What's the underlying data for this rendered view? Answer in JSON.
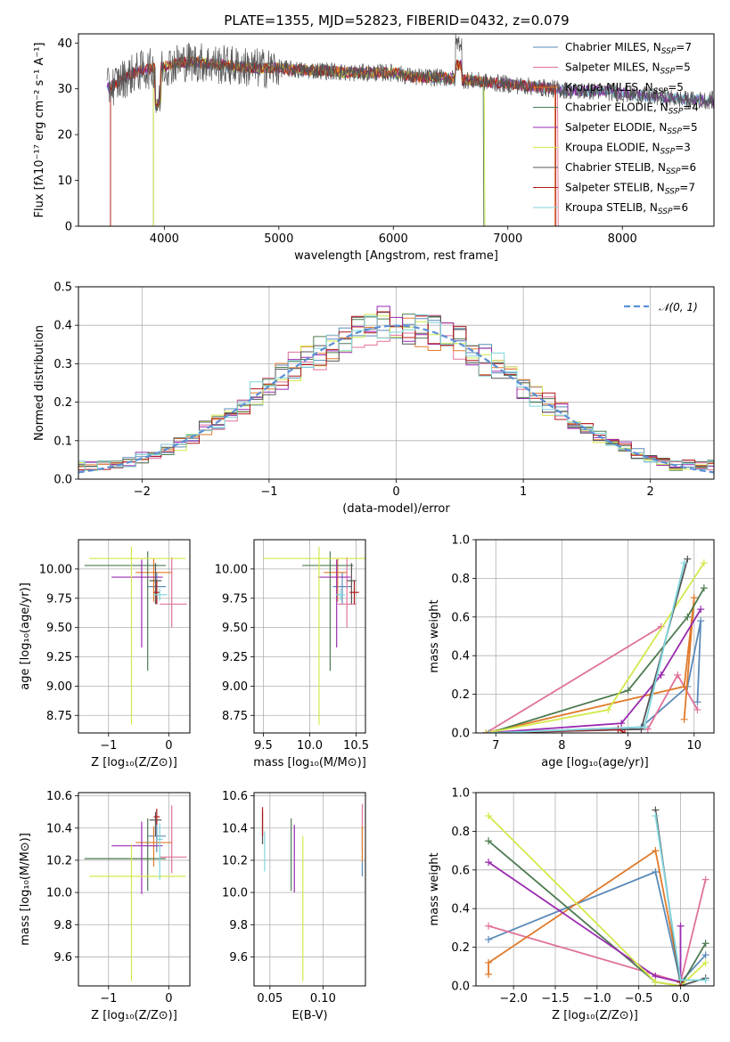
{
  "figure_title": "PLATE=1355, MJD=52823, FIBERID=0432, z=0.079",
  "colors": {
    "c1": "#5b8ab8",
    "c2": "#e0729a",
    "c3": "#e07a2a",
    "c4": "#4e7b50",
    "c5": "#9a2bb0",
    "c6": "#d4e84a",
    "c7": "#555555",
    "c8": "#b01818",
    "c9": "#7fd6dc"
  },
  "chart_data": [
    {
      "id": "spectrum",
      "type": "line",
      "xlabel": "wavelength [Angstrom, rest frame]",
      "ylabel": "Flux [fλ10⁻¹⁷ erg cm⁻² s⁻¹ A⁻¹]",
      "xlim": [
        3250,
        8800
      ],
      "ylim": [
        0,
        42
      ],
      "xticks": [
        4000,
        5000,
        6000,
        7000,
        8000
      ],
      "yticks": [
        0,
        10,
        20,
        30,
        40
      ],
      "grid": false,
      "legend_position": "top-right",
      "series": [
        {
          "name": "Chabrier MILES, N",
          "sub": "SSP",
          "suffix": "=7",
          "color": "c1"
        },
        {
          "name": "Salpeter MILES, N",
          "sub": "SSP",
          "suffix": "=5",
          "color": "c2"
        },
        {
          "name": "Kroupa MILES, N",
          "sub": "SSP",
          "suffix": "=5",
          "color": "c3"
        },
        {
          "name": "Chabrier ELODIE, N",
          "sub": "SSP",
          "suffix": "=4",
          "color": "c4"
        },
        {
          "name": "Salpeter ELODIE, N",
          "sub": "SSP",
          "suffix": "=5",
          "color": "c5"
        },
        {
          "name": "Kroupa ELODIE, N",
          "sub": "SSP",
          "suffix": "=3",
          "color": "c6"
        },
        {
          "name": "Chabrier STELIB, N",
          "sub": "SSP",
          "suffix": "=6",
          "color": "c7"
        },
        {
          "name": "Salpeter STELIB, N",
          "sub": "SSP",
          "suffix": "=7",
          "color": "c8"
        },
        {
          "name": "Kroupa STELIB, N",
          "sub": "SSP",
          "suffix": "=6",
          "color": "c9"
        }
      ],
      "continuum": {
        "x": [
          3500,
          3600,
          3700,
          3800,
          3900,
          4000,
          4100,
          4200,
          4400,
          4600,
          4800,
          5000,
          5200,
          5400,
          5600,
          5800,
          6000,
          6200,
          6400,
          6600,
          6800,
          7000,
          7200,
          7400,
          7600,
          7800,
          8000,
          8200,
          8400,
          8600,
          8800
        ],
        "y": [
          30,
          31.5,
          33,
          34,
          34.5,
          35,
          35.5,
          36,
          35.5,
          35,
          34.5,
          34.5,
          34,
          34,
          33.5,
          33.5,
          33.5,
          32.5,
          32.5,
          32,
          31.5,
          31,
          30.5,
          30,
          29.5,
          29.5,
          29,
          28.5,
          28,
          27.5,
          27.5
        ]
      },
      "ends": [
        {
          "color": "c3",
          "x0": 3530,
          "x1": 7410
        },
        {
          "color": "c2",
          "x0": 3530,
          "x1": 7440
        },
        {
          "color": "c6",
          "x0": 3905,
          "x1": 6800
        },
        {
          "color": "c4",
          "x0": 3905,
          "x1": 6790
        },
        {
          "color": "c8",
          "x0": 3530,
          "x1": 7420
        }
      ]
    },
    {
      "id": "residuals",
      "type": "histogram",
      "xlabel": "(data-model)/error",
      "ylabel": "Normed distribution",
      "xlim": [
        -2.5,
        2.5
      ],
      "ylim": [
        0,
        0.5
      ],
      "xticks": [
        -2,
        -1,
        0,
        1,
        2
      ],
      "yticks": [
        0.0,
        0.1,
        0.2,
        0.3,
        0.4,
        0.5
      ],
      "grid": true,
      "legend_position": "top-right",
      "reference": {
        "name": "𝒩(0, 1)",
        "color": "#5b8fd6"
      },
      "bin_width": 0.1
    },
    {
      "id": "age_vs_Z",
      "type": "errorbar",
      "xlabel": "Z [log₁₀(Z/Z⊙)]",
      "ylabel": "age  [log₁₀(age/yr)]",
      "xlim": [
        -1.5,
        0.35
      ],
      "ylim": [
        8.6,
        10.25
      ],
      "xticks": [
        -1,
        0
      ],
      "yticks": [
        8.75,
        9.0,
        9.25,
        9.5,
        9.75,
        10.0
      ],
      "grid": true,
      "points": [
        {
          "color": "c1",
          "x": -0.2,
          "y": 9.85,
          "xerr": [
            0.15,
            0.15
          ],
          "yerr": [
            0.15,
            0.12
          ]
        },
        {
          "color": "c2",
          "x": 0.05,
          "y": 9.7,
          "xerr": [
            0.2,
            0.25
          ],
          "yerr": [
            0.2,
            0.4
          ]
        },
        {
          "color": "c3",
          "x": -0.25,
          "y": 9.97,
          "xerr": [
            0.3,
            0.3
          ],
          "yerr": [
            0.25,
            0.12
          ]
        },
        {
          "color": "c4",
          "x": -0.35,
          "y": 10.03,
          "xerr": [
            1.05,
            0.3
          ],
          "yerr": [
            0.9,
            0.12
          ]
        },
        {
          "color": "c5",
          "x": -0.45,
          "y": 9.93,
          "xerr": [
            0.5,
            0.35
          ],
          "yerr": [
            0.6,
            0.15
          ]
        },
        {
          "color": "c6",
          "x": -0.62,
          "y": 10.09,
          "xerr": [
            0.7,
            0.9
          ],
          "yerr": [
            1.42,
            0.1
          ]
        },
        {
          "color": "c7",
          "x": -0.22,
          "y": 9.9,
          "xerr": [
            0.1,
            0.1
          ],
          "yerr": [
            0.2,
            0.15
          ]
        },
        {
          "color": "c8",
          "x": -0.2,
          "y": 9.8,
          "xerr": [
            0.05,
            0.05
          ],
          "yerr": [
            0.1,
            0.1
          ]
        },
        {
          "color": "c9",
          "x": -0.15,
          "y": 9.78,
          "xerr": [
            0.1,
            0.12
          ],
          "yerr": [
            0.05,
            0.05
          ]
        }
      ]
    },
    {
      "id": "age_vs_mass",
      "type": "errorbar",
      "xlabel": "mass [log₁₀(M/M⊙)]",
      "ylabel": "",
      "xlim": [
        9.4,
        10.6
      ],
      "ylim": [
        8.6,
        10.25
      ],
      "xticks": [
        9.5,
        10.0,
        10.5
      ],
      "yticks": [
        8.75,
        9.0,
        9.25,
        9.5,
        9.75,
        10.0
      ],
      "grid": true,
      "points": [
        {
          "color": "c1",
          "x": 10.35,
          "y": 9.85,
          "xerr": [
            0.1,
            0.1
          ],
          "yerr": [
            0.15,
            0.12
          ]
        },
        {
          "color": "c2",
          "x": 10.4,
          "y": 9.7,
          "xerr": [
            0.1,
            0.1
          ],
          "yerr": [
            0.2,
            0.4
          ]
        },
        {
          "color": "c3",
          "x": 10.3,
          "y": 9.97,
          "xerr": [
            0.15,
            0.1
          ],
          "yerr": [
            0.25,
            0.12
          ]
        },
        {
          "color": "c4",
          "x": 10.22,
          "y": 10.03,
          "xerr": [
            0.3,
            0.25
          ],
          "yerr": [
            0.9,
            0.12
          ]
        },
        {
          "color": "c5",
          "x": 10.29,
          "y": 9.93,
          "xerr": [
            0.2,
            0.15
          ],
          "yerr": [
            0.6,
            0.15
          ]
        },
        {
          "color": "c6",
          "x": 10.1,
          "y": 10.09,
          "xerr": [
            0.6,
            0.5
          ],
          "yerr": [
            1.42,
            0.1
          ]
        },
        {
          "color": "c7",
          "x": 10.45,
          "y": 9.9,
          "xerr": [
            0.05,
            0.05
          ],
          "yerr": [
            0.2,
            0.15
          ]
        },
        {
          "color": "c8",
          "x": 10.48,
          "y": 9.8,
          "xerr": [
            0.05,
            0.05
          ],
          "yerr": [
            0.1,
            0.1
          ]
        },
        {
          "color": "c9",
          "x": 10.33,
          "y": 9.78,
          "xerr": [
            0.05,
            0.05
          ],
          "yerr": [
            0.05,
            0.05
          ]
        }
      ]
    },
    {
      "id": "weight_vs_age",
      "type": "line",
      "xlabel": "age  [log₁₀(age/yr)]",
      "ylabel": "mass weight",
      "xlim": [
        6.7,
        10.3
      ],
      "ylim": [
        0,
        1.0
      ],
      "xticks": [
        7,
        8,
        9,
        10
      ],
      "yticks": [
        0.0,
        0.2,
        0.4,
        0.6,
        0.8,
        1.0
      ],
      "grid": true,
      "series": [
        {
          "color": "c1",
          "x": [
            6.85,
            9.2,
            9.9,
            10.1,
            10.05
          ],
          "y": [
            0.0,
            0.03,
            0.24,
            0.58,
            0.16
          ]
        },
        {
          "color": "c2",
          "x": [
            9.5,
            6.85,
            9.3,
            9.75,
            10.05
          ],
          "y": [
            0.55,
            0.0,
            0.02,
            0.3,
            0.12
          ]
        },
        {
          "color": "c3",
          "x": [
            6.85,
            9.85,
            10.0,
            9.85
          ],
          "y": [
            0.0,
            0.24,
            0.7,
            0.07
          ]
        },
        {
          "color": "c4",
          "x": [
            6.9,
            9.0,
            9.9,
            10.15
          ],
          "y": [
            0.0,
            0.22,
            0.6,
            0.75
          ]
        },
        {
          "color": "c5",
          "x": [
            6.85,
            8.9,
            9.5,
            10.1
          ],
          "y": [
            0.0,
            0.05,
            0.3,
            0.64
          ]
        },
        {
          "color": "c6",
          "x": [
            6.85,
            8.7,
            10.15
          ],
          "y": [
            0.0,
            0.12,
            0.88
          ]
        },
        {
          "color": "c7",
          "x": [
            6.9,
            9.2,
            9.9
          ],
          "y": [
            0.0,
            0.02,
            0.9
          ]
        },
        {
          "color": "c8",
          "x": [
            6.9,
            8.85,
            8.95
          ],
          "y": [
            0.0,
            0.02,
            0.0
          ]
        },
        {
          "color": "c9",
          "x": [
            6.9,
            9.25,
            9.85
          ],
          "y": [
            0.0,
            0.03,
            0.88
          ]
        }
      ]
    },
    {
      "id": "mass_vs_Z",
      "type": "errorbar",
      "xlabel": "Z [log₁₀(Z/Z⊙)]",
      "ylabel": "mass [log₁₀(M/M⊙)]",
      "xlim": [
        -1.5,
        0.35
      ],
      "ylim": [
        9.42,
        10.62
      ],
      "xticks": [
        -1,
        0
      ],
      "yticks": [
        9.6,
        9.8,
        10.0,
        10.2,
        10.4,
        10.6
      ],
      "grid": true,
      "points": [
        {
          "color": "c1",
          "x": -0.2,
          "y": 10.35,
          "xerr": [
            0.15,
            0.15
          ],
          "yerr": [
            0.1,
            0.1
          ]
        },
        {
          "color": "c2",
          "x": 0.05,
          "y": 10.22,
          "xerr": [
            0.2,
            0.25
          ],
          "yerr": [
            0.1,
            0.32
          ]
        },
        {
          "color": "c3",
          "x": -0.25,
          "y": 10.31,
          "xerr": [
            0.3,
            0.3
          ],
          "yerr": [
            0.15,
            0.1
          ]
        },
        {
          "color": "c4",
          "x": -0.35,
          "y": 10.21,
          "xerr": [
            1.05,
            0.3
          ],
          "yerr": [
            0.2,
            0.25
          ]
        },
        {
          "color": "c5",
          "x": -0.45,
          "y": 10.29,
          "xerr": [
            0.5,
            0.35
          ],
          "yerr": [
            0.3,
            0.15
          ]
        },
        {
          "color": "c6",
          "x": -0.62,
          "y": 10.1,
          "xerr": [
            0.7,
            0.9
          ],
          "yerr": [
            0.65,
            0.2
          ]
        },
        {
          "color": "c7",
          "x": -0.22,
          "y": 10.45,
          "xerr": [
            0.1,
            0.1
          ],
          "yerr": [
            0.1,
            0.05
          ]
        },
        {
          "color": "c8",
          "x": -0.2,
          "y": 10.47,
          "xerr": [
            0.05,
            0.05
          ],
          "yerr": [
            0.05,
            0.05
          ]
        },
        {
          "color": "c9",
          "x": -0.15,
          "y": 10.33,
          "xerr": [
            0.05,
            0.05
          ],
          "yerr": [
            0.25,
            0.1
          ]
        }
      ]
    },
    {
      "id": "mass_vs_ebv",
      "type": "errorbar",
      "xlabel": "E(B-V)",
      "ylabel": "",
      "xlim": [
        0.035,
        0.14
      ],
      "ylim": [
        9.42,
        10.62
      ],
      "xticks": [
        0.05,
        0.1
      ],
      "xticklabels": [
        "0.05",
        "0.10"
      ],
      "yticks": [
        9.6,
        9.8,
        10.0,
        10.2,
        10.4,
        10.6
      ],
      "grid": true,
      "points": [
        {
          "color": "c1",
          "x": 0.137,
          "y": 10.15,
          "xerr": [
            0,
            0
          ],
          "yerr": [
            0.05,
            0.05
          ]
        },
        {
          "color": "c2",
          "x": 0.137,
          "y": 10.35,
          "xerr": [
            0,
            0
          ],
          "yerr": [
            0.1,
            0.2
          ]
        },
        {
          "color": "c3",
          "x": 0.137,
          "y": 10.31,
          "xerr": [
            0,
            0
          ],
          "yerr": [
            0.12,
            0.1
          ]
        },
        {
          "color": "c4",
          "x": 0.07,
          "y": 10.21,
          "xerr": [
            0,
            0
          ],
          "yerr": [
            0.2,
            0.25
          ]
        },
        {
          "color": "c5",
          "x": 0.073,
          "y": 10.22,
          "xerr": [
            0,
            0
          ],
          "yerr": [
            0.22,
            0.2
          ]
        },
        {
          "color": "c6",
          "x": 0.081,
          "y": 9.9,
          "xerr": [
            0,
            0
          ],
          "yerr": [
            0.45,
            0.45
          ]
        },
        {
          "color": "c7",
          "x": 0.043,
          "y": 10.4,
          "xerr": [
            0,
            0
          ],
          "yerr": [
            0.1,
            0.1
          ]
        },
        {
          "color": "c8",
          "x": 0.043,
          "y": 10.45,
          "xerr": [
            0,
            0
          ],
          "yerr": [
            0.1,
            0.08
          ]
        },
        {
          "color": "c9",
          "x": 0.045,
          "y": 10.28,
          "xerr": [
            0,
            0
          ],
          "yerr": [
            0.15,
            0.1
          ]
        }
      ]
    },
    {
      "id": "weight_vs_Z",
      "type": "line",
      "xlabel": "Z [log₁₀(Z/Z⊙)]",
      "ylabel": "mass weight",
      "xlim": [
        -2.45,
        0.4
      ],
      "ylim": [
        0,
        1.0
      ],
      "xticks": [
        -2.0,
        -1.5,
        -1.0,
        -0.5,
        0.0
      ],
      "xticklabels": [
        "−2.0",
        "−1.5",
        "−1.0",
        "−0.5",
        "0.0"
      ],
      "yticks": [
        0.0,
        0.2,
        0.4,
        0.6,
        0.8,
        1.0
      ],
      "grid": true,
      "series": [
        {
          "color": "c1",
          "x": [
            -2.3,
            -0.3,
            0.0,
            0.3
          ],
          "y": [
            0.24,
            0.59,
            0.02,
            0.16
          ]
        },
        {
          "color": "c2",
          "x": [
            -2.3,
            0.0,
            0.3
          ],
          "y": [
            0.31,
            0.02,
            0.55
          ]
        },
        {
          "color": "c3",
          "x": [
            -2.3,
            -2.3,
            -0.3,
            0.0
          ],
          "y": [
            0.06,
            0.12,
            0.7,
            0.03
          ]
        },
        {
          "color": "c4",
          "x": [
            -2.3,
            -0.3,
            0.0,
            0.3
          ],
          "y": [
            0.75,
            0.02,
            0.0,
            0.22
          ]
        },
        {
          "color": "c5",
          "x": [
            -2.3,
            -0.3,
            0.0,
            0.0
          ],
          "y": [
            0.64,
            0.05,
            0.02,
            0.31
          ]
        },
        {
          "color": "c6",
          "x": [
            -2.3,
            -0.3,
            0.0,
            0.3
          ],
          "y": [
            0.88,
            0.02,
            0.0,
            0.12
          ]
        },
        {
          "color": "c7",
          "x": [
            -0.3,
            0.0,
            0.3
          ],
          "y": [
            0.91,
            0.0,
            0.04
          ]
        },
        {
          "color": "c8",
          "x": [
            0.0,
            0.0
          ],
          "y": [
            0.0,
            0.02
          ]
        },
        {
          "color": "c9",
          "x": [
            -0.3,
            0.0,
            0.3
          ],
          "y": [
            0.88,
            0.03,
            0.03
          ]
        }
      ]
    }
  ]
}
